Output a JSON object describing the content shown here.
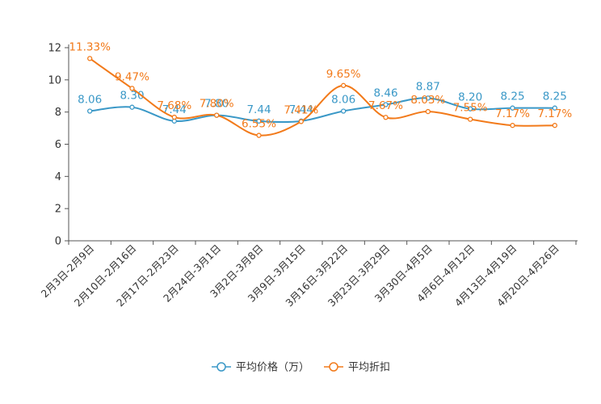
{
  "chart_data": {
    "type": "line",
    "title": "",
    "xlabel": "",
    "ylabel": "",
    "ylim": [
      0,
      12
    ],
    "yticks": [
      0,
      2,
      4,
      6,
      8,
      10,
      12
    ],
    "categories": [
      "2月3日-2月9日",
      "2月10日-2月16日",
      "2月17日-2月23日",
      "2月24日-3月1日",
      "3月2日-3月8日",
      "3月9日-3月15日",
      "3月16日-3月22日",
      "3月23日-3月29日",
      "3月30日-4月5日",
      "4月6日-4月12日",
      "4月13日-4月19日",
      "4月20日-4月26日"
    ],
    "series": [
      {
        "name": "平均价格（万）",
        "color": "#3a98c7",
        "values": [
          8.06,
          8.3,
          7.44,
          7.8,
          7.44,
          7.44,
          8.06,
          8.46,
          8.87,
          8.2,
          8.25,
          8.25
        ],
        "labels": [
          "8.06",
          "8.30",
          "7.44",
          "7.80",
          "7.44",
          "7.44",
          "8.06",
          "8.46",
          "8.87",
          "8.20",
          "8.25",
          "8.25"
        ]
      },
      {
        "name": "平均折扣",
        "color": "#f27a1a",
        "values": [
          11.33,
          9.47,
          7.68,
          7.8,
          6.55,
          7.41,
          9.65,
          7.67,
          8.03,
          7.55,
          7.17,
          7.17
        ],
        "labels": [
          "11.33%",
          "9.47%",
          "7.68%",
          "7.80%",
          "6.55%",
          "7.41%",
          "9.65%",
          "7.67%",
          "8.03%",
          "7.55%",
          "7.17%",
          "7.17%"
        ]
      }
    ],
    "legend_position": "bottom-center"
  }
}
